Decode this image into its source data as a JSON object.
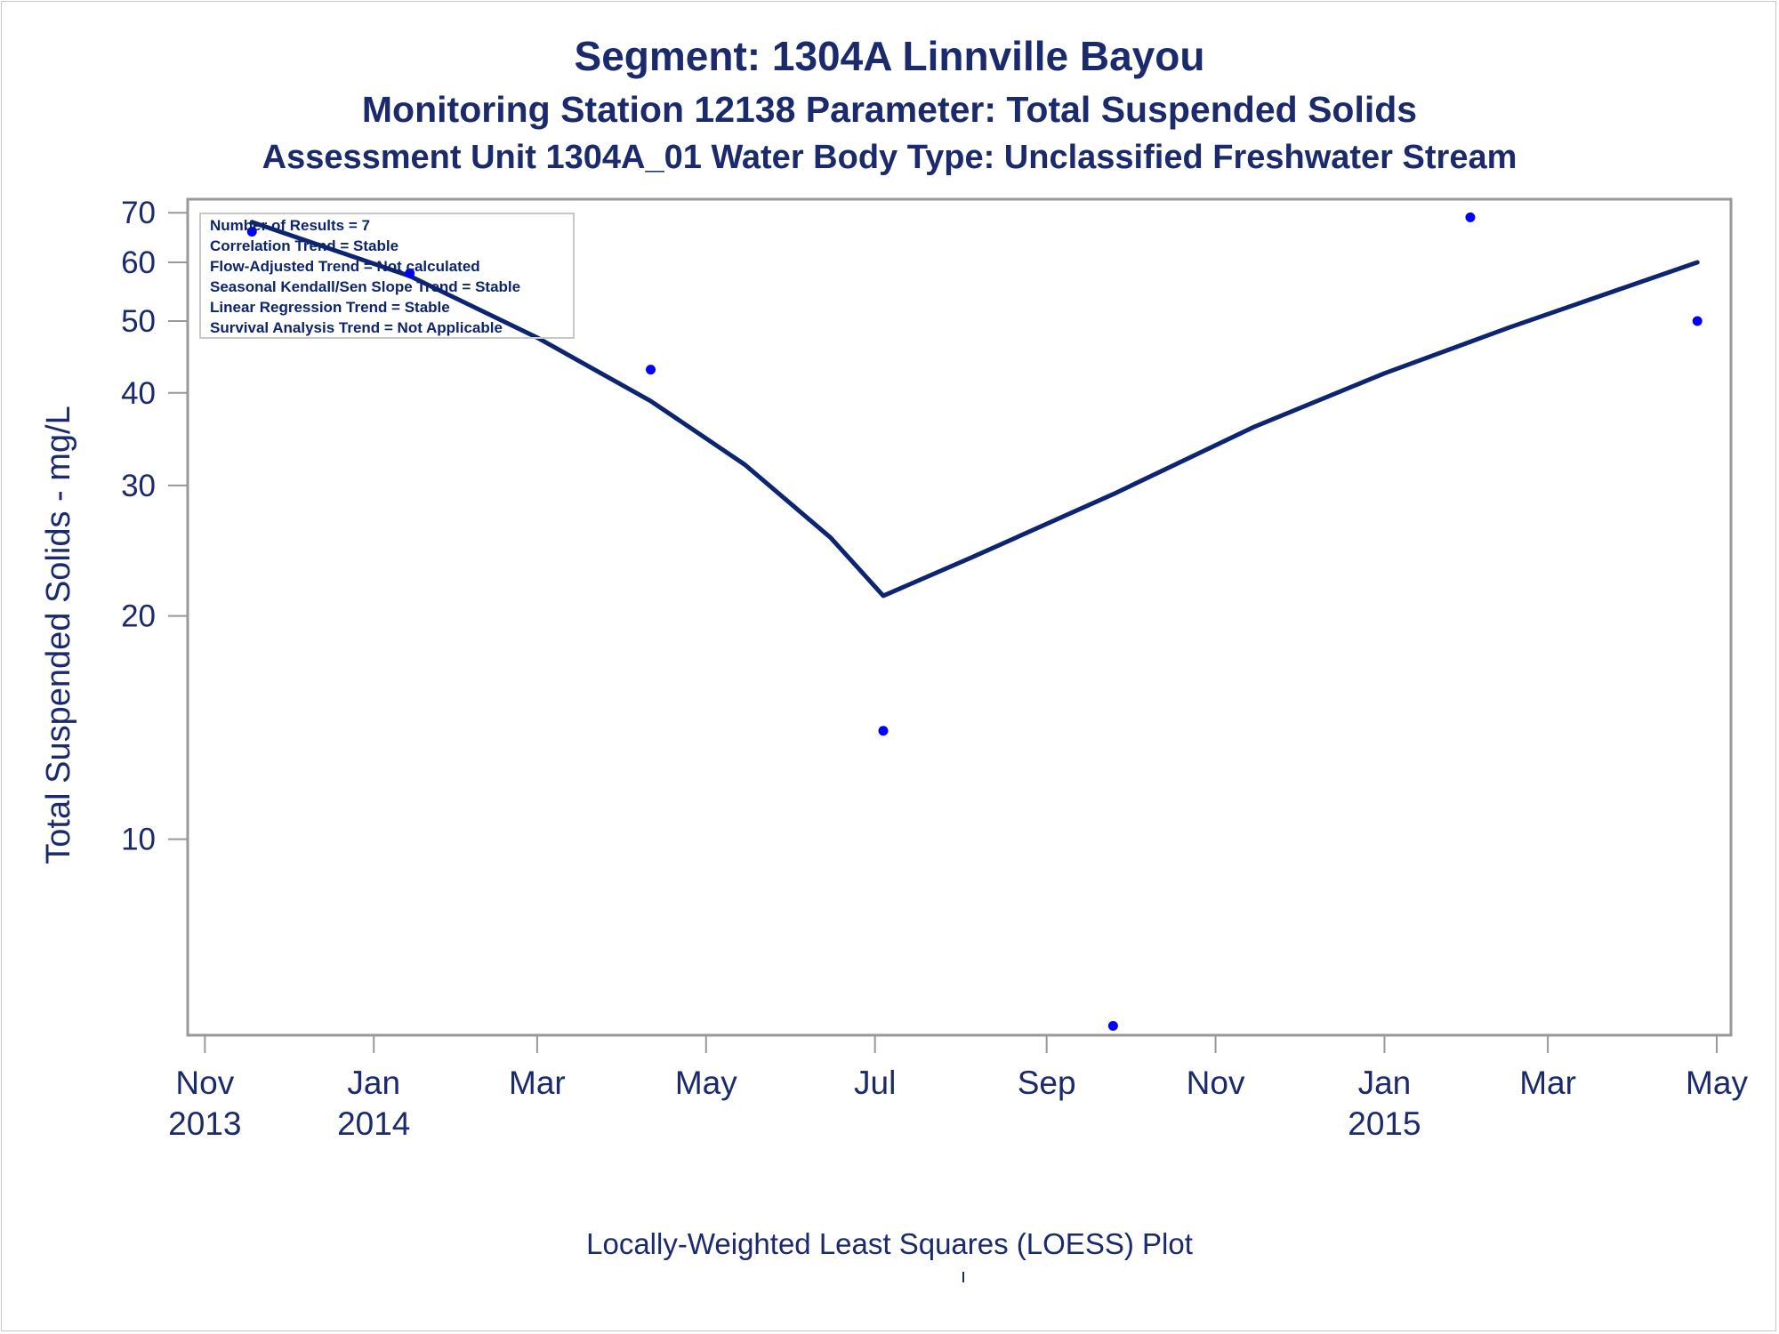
{
  "chart_data": {
    "type": "scatter",
    "title": "Segment: 1304A  Linnville Bayou",
    "subtitle": "Monitoring Station 12138 Parameter: Total Suspended Solids",
    "subtitle2": "Assessment Unit 1304A_01   Water Body Type: Unclassified Freshwater Stream",
    "xlabel": "",
    "ylabel": "Total Suspended Solids - mg/L",
    "footnote": "Locally-Weighted Least Squares (LOESS) Plot",
    "y_scale": "log",
    "ylim": [
      5.5,
      72
    ],
    "y_ticks": [
      10,
      20,
      30,
      40,
      50,
      60,
      70
    ],
    "xlim": [
      "2013-10-29",
      "2015-05-01"
    ],
    "x_ticks": [
      {
        "date": "2013-11-01",
        "label": "Nov",
        "label2": "2013"
      },
      {
        "date": "2014-01-01",
        "label": "Jan",
        "label2": "2014"
      },
      {
        "date": "2014-03-01",
        "label": "Mar",
        "label2": ""
      },
      {
        "date": "2014-05-01",
        "label": "May",
        "label2": ""
      },
      {
        "date": "2014-07-01",
        "label": "Jul",
        "label2": ""
      },
      {
        "date": "2014-09-01",
        "label": "Sep",
        "label2": ""
      },
      {
        "date": "2014-11-01",
        "label": "Nov",
        "label2": ""
      },
      {
        "date": "2015-01-01",
        "label": "Jan",
        "label2": "2015"
      },
      {
        "date": "2015-03-01",
        "label": "Mar",
        "label2": ""
      },
      {
        "date": "2015-05-01",
        "label": "May",
        "label2": ""
      }
    ],
    "points": [
      {
        "x": "2013-11-18",
        "y": 66
      },
      {
        "x": "2014-01-14",
        "y": 58
      },
      {
        "x": "2014-04-11",
        "y": 43
      },
      {
        "x": "2014-07-04",
        "y": 14
      },
      {
        "x": "2014-09-25",
        "y": 5.6
      },
      {
        "x": "2015-02-01",
        "y": 69
      },
      {
        "x": "2015-04-24",
        "y": 50
      }
    ],
    "loess": [
      {
        "x": "2013-11-18",
        "y": 68
      },
      {
        "x": "2014-01-14",
        "y": 57.5
      },
      {
        "x": "2014-03-01",
        "y": 47.5
      },
      {
        "x": "2014-04-11",
        "y": 39
      },
      {
        "x": "2014-05-15",
        "y": 32
      },
      {
        "x": "2014-06-15",
        "y": 25.5
      },
      {
        "x": "2014-07-04",
        "y": 21.3
      },
      {
        "x": "2014-08-05",
        "y": 24
      },
      {
        "x": "2014-09-25",
        "y": 29.2
      },
      {
        "x": "2014-11-15",
        "y": 36
      },
      {
        "x": "2015-01-01",
        "y": 42.5
      },
      {
        "x": "2015-02-15",
        "y": 49
      },
      {
        "x": "2015-04-24",
        "y": 60
      }
    ],
    "legend_box": {
      "placement": "top-left",
      "lines": [
        "Number of Results = 7",
        "Correlation Trend = Stable",
        "Flow-Adjusted Trend = Not calculated",
        "Seasonal Kendall/Sen Slope Trend = Stable",
        "Linear Regression Trend = Stable",
        "Survival Analysis Trend = Not Applicable"
      ]
    },
    "colors": {
      "text": "#1a2a6c",
      "line": "#0d2470",
      "points": "#0000ff",
      "axis": "#999999"
    },
    "grid": false
  }
}
